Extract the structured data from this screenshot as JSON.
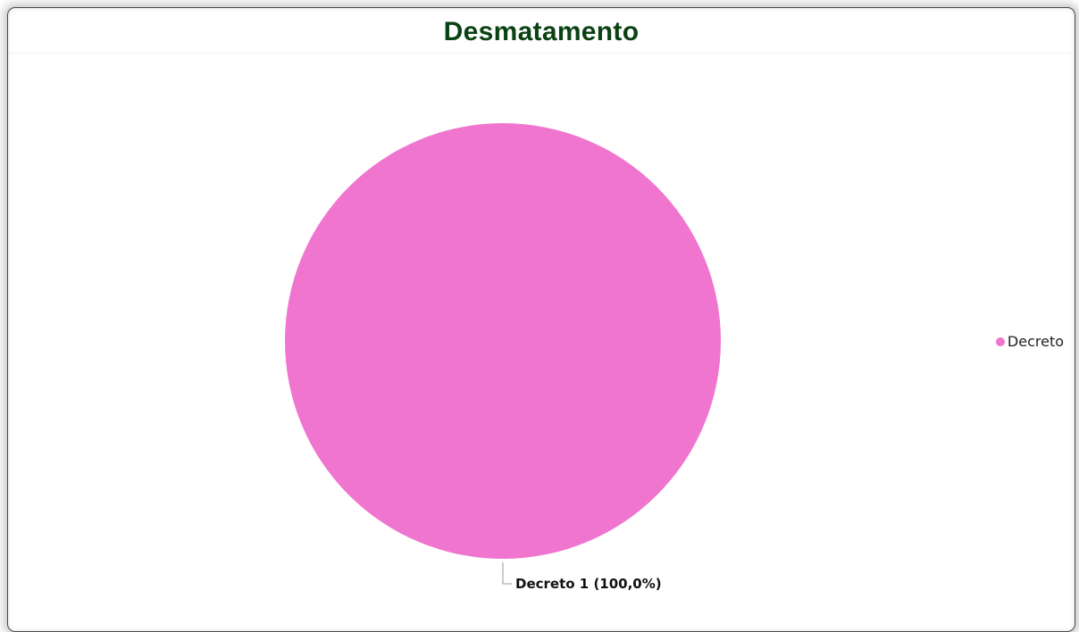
{
  "colors": {
    "title": "#0a4214",
    "slice": "#f075cf",
    "leader": "#999999"
  },
  "chart_data": {
    "type": "pie",
    "title": "Desmatamento",
    "slices": [
      {
        "label": "Decreto",
        "value": 1,
        "percent": "100,0%"
      }
    ],
    "data_labels": [
      "Decreto 1 (100,0%)"
    ],
    "legend": {
      "placement": "right",
      "entries": [
        "Decreto"
      ]
    }
  }
}
